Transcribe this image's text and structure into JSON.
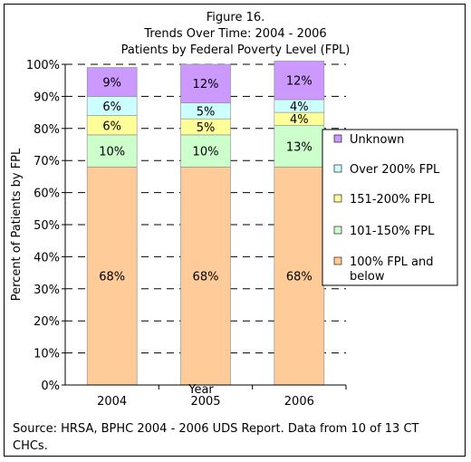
{
  "chart_data": {
    "type": "bar",
    "stacked": true,
    "title": [
      "Figure 16.",
      "Trends Over Time: 2004 - 2006",
      "Patients by Federal Poverty Level (FPL)"
    ],
    "xlabel": "Year",
    "ylabel": "Percent of Patients by FPL",
    "ylim": [
      0,
      100
    ],
    "ytick_labels": [
      "0%",
      "10%",
      "20%",
      "30%",
      "40%",
      "50%",
      "60%",
      "70%",
      "80%",
      "90%",
      "100%"
    ],
    "categories": [
      "2004",
      "2005",
      "2006"
    ],
    "series": [
      {
        "name": "100% FPL and below",
        "color": "#FFCC99",
        "values": [
          68,
          68,
          68
        ],
        "labels": [
          "68%",
          "68%",
          "68%"
        ]
      },
      {
        "name": "101-150% FPL",
        "color": "#CCFFCC",
        "values": [
          10,
          10,
          13
        ],
        "labels": [
          "10%",
          "10%",
          "13%"
        ]
      },
      {
        "name": "151-200% FPL",
        "color": "#FFFF99",
        "values": [
          6,
          5,
          4
        ],
        "labels": [
          "6%",
          "5%",
          "4%"
        ]
      },
      {
        "name": "Over 200% FPL",
        "color": "#CCFFFF",
        "values": [
          6,
          5,
          4
        ],
        "labels": [
          "6%",
          "5%",
          "4%"
        ]
      },
      {
        "name": "Unknown",
        "color": "#CC99FF",
        "values": [
          9,
          12,
          12
        ],
        "labels": [
          "9%",
          "12%",
          "12%"
        ]
      }
    ],
    "gridlines": true,
    "legend_position": "right"
  },
  "source": [
    "Source:  HRSA, BPHC 2004 - 2006 UDS Report.  Data from 10 of 13 CT",
    "CHCs."
  ]
}
